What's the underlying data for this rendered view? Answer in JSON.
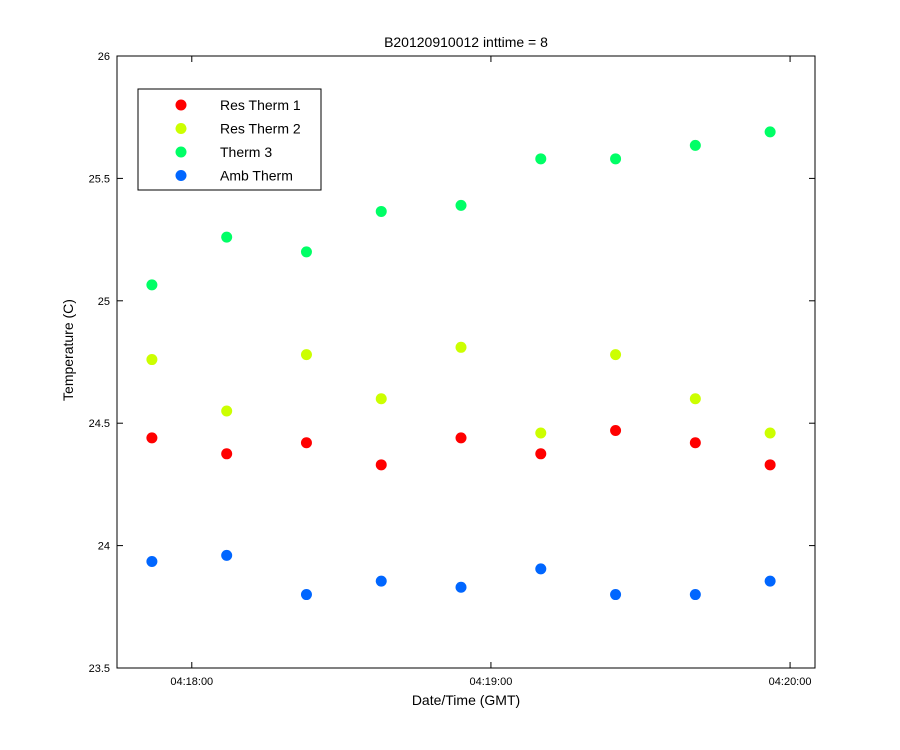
{
  "chart_data": {
    "type": "scatter",
    "title": "B20120910012 inttime = 8",
    "xlabel": "Date/Time (GMT)",
    "ylabel": "Temperature (C)",
    "ylim": [
      23.5,
      26
    ],
    "xlim": [
      "04:17:45",
      "04:20:05"
    ],
    "yticks": [
      "23.5",
      "24",
      "24.5",
      "25",
      "25.5",
      "26"
    ],
    "xticks": [
      {
        "value": "04:18:00",
        "label": "04:18:00"
      },
      {
        "value": "04:19:00",
        "label": "04:19:00"
      },
      {
        "value": "04:20:00",
        "label": "04:20:00"
      }
    ],
    "x": [
      "04:17:52",
      "04:18:07",
      "04:18:23",
      "04:18:38",
      "04:18:54",
      "04:19:10",
      "04:19:25",
      "04:19:41",
      "04:19:56"
    ],
    "legend_position": "top-left",
    "grid": false,
    "series": [
      {
        "name": "Res Therm 1",
        "color": "#ff0000",
        "values": [
          24.44,
          24.375,
          24.42,
          24.33,
          24.44,
          24.375,
          24.47,
          24.42,
          24.33
        ]
      },
      {
        "name": "Res Therm 2",
        "color": "#ccff00",
        "values": [
          24.76,
          24.55,
          24.78,
          24.6,
          24.81,
          24.46,
          24.78,
          24.6,
          24.46
        ]
      },
      {
        "name": "Therm 3",
        "color": "#00ff66",
        "values": [
          25.065,
          25.26,
          25.2,
          25.365,
          25.39,
          25.58,
          25.58,
          25.635,
          25.69
        ]
      },
      {
        "name": "Amb Therm",
        "color": "#0066ff",
        "values": [
          23.935,
          23.96,
          23.8,
          23.855,
          23.83,
          23.905,
          23.8,
          23.8,
          23.855
        ]
      }
    ]
  }
}
